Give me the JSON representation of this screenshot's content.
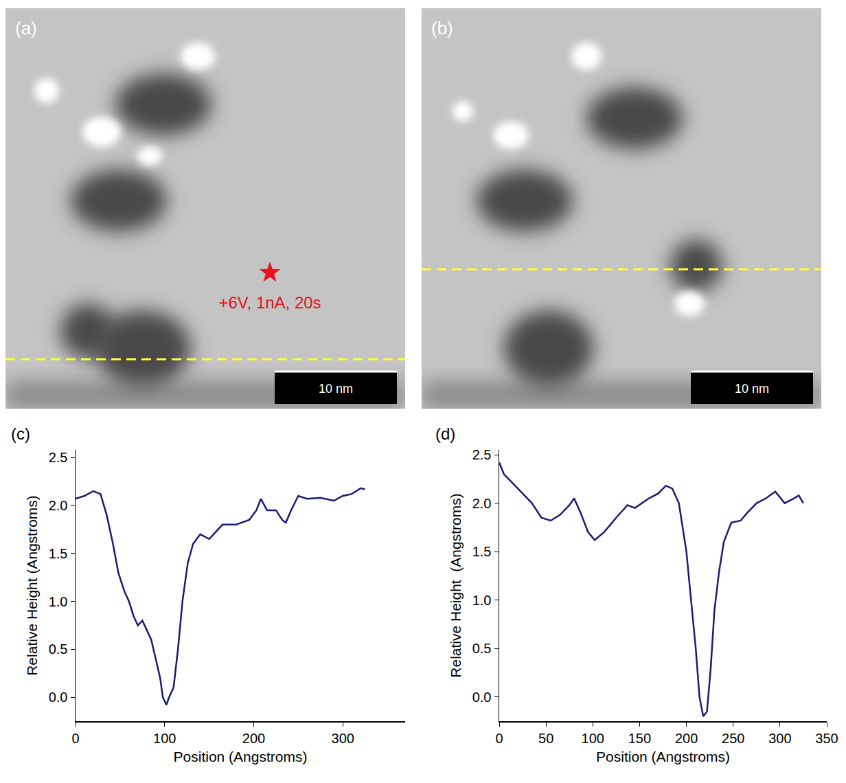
{
  "images": [
    {
      "label": "(a)",
      "scale_bar": "10 nm",
      "annotation": "+6V, 1nA, 20s"
    },
    {
      "label": "(b)",
      "scale_bar": "10 nm"
    }
  ],
  "chart_data": [
    {
      "type": "line",
      "label": "(c)",
      "x_label": "Position (Angstroms)",
      "y_label": "Relative Height (Angstroms)",
      "color": "#1a1a78",
      "x": [
        0,
        10,
        20,
        28,
        35,
        42,
        48,
        55,
        60,
        65,
        70,
        75,
        80,
        85,
        90,
        95,
        98,
        102,
        105,
        110,
        115,
        120,
        126,
        132,
        140,
        150,
        155,
        165,
        180,
        195,
        203,
        208,
        215,
        225,
        232,
        236,
        242,
        250,
        260,
        275,
        290,
        300,
        310,
        320,
        325
      ],
      "values": [
        2.07,
        2.1,
        2.15,
        2.12,
        1.9,
        1.6,
        1.3,
        1.1,
        1.0,
        0.85,
        0.75,
        0.8,
        0.7,
        0.6,
        0.4,
        0.2,
        0.0,
        -0.08,
        0.0,
        0.1,
        0.5,
        1.0,
        1.4,
        1.6,
        1.7,
        1.65,
        1.7,
        1.8,
        1.8,
        1.85,
        1.95,
        2.07,
        1.95,
        1.95,
        1.85,
        1.82,
        1.95,
        2.1,
        2.07,
        2.08,
        2.05,
        2.1,
        2.12,
        2.18,
        2.17
      ],
      "xlim": [
        0,
        370
      ],
      "ylim": [
        -0.25,
        2.58
      ],
      "xticks": [
        0,
        100,
        200,
        300
      ],
      "yticks": [
        {
          "value": 0,
          "label": "0.0"
        },
        {
          "value": 0.5,
          "label": "0.5"
        },
        {
          "value": 1,
          "label": "1.0"
        },
        {
          "value": 1.5,
          "label": "1.5"
        },
        {
          "value": 2,
          "label": "2.0"
        },
        {
          "value": 2.5,
          "label": "2.5"
        }
      ],
      "grid": false
    },
    {
      "type": "line",
      "label": "(d)",
      "x_label": "Position (Angstroms)",
      "y_label": "Relative Height  (Angstroms)",
      "color": "#1a1a78",
      "x": [
        0,
        5,
        15,
        25,
        35,
        45,
        55,
        65,
        75,
        80,
        87,
        95,
        102,
        112,
        125,
        137,
        145,
        160,
        170,
        178,
        185,
        192,
        200,
        205,
        210,
        214,
        218,
        222,
        226,
        230,
        235,
        240,
        248,
        258,
        265,
        275,
        285,
        295,
        305,
        315,
        320,
        325
      ],
      "values": [
        2.42,
        2.3,
        2.2,
        2.1,
        2.0,
        1.85,
        1.82,
        1.88,
        1.98,
        2.05,
        1.9,
        1.7,
        1.62,
        1.7,
        1.85,
        1.98,
        1.95,
        2.05,
        2.1,
        2.18,
        2.15,
        2.0,
        1.5,
        1.0,
        0.5,
        0.0,
        -0.2,
        -0.15,
        0.3,
        0.9,
        1.3,
        1.6,
        1.8,
        1.82,
        1.9,
        2.0,
        2.05,
        2.12,
        2.0,
        2.05,
        2.08,
        2.0
      ],
      "xlim": [
        0,
        350
      ],
      "ylim": [
        -0.25,
        2.55
      ],
      "xticks": [
        0,
        50,
        100,
        150,
        200,
        250,
        300,
        350
      ],
      "yticks": [
        {
          "value": 0,
          "label": "0.0"
        },
        {
          "value": 0.5,
          "label": "0.5"
        },
        {
          "value": 1,
          "label": "1.0"
        },
        {
          "value": 1.5,
          "label": "1.5"
        },
        {
          "value": 2,
          "label": "2.0"
        },
        {
          "value": 2.5,
          "label": "2.5"
        }
      ],
      "grid": false
    }
  ]
}
